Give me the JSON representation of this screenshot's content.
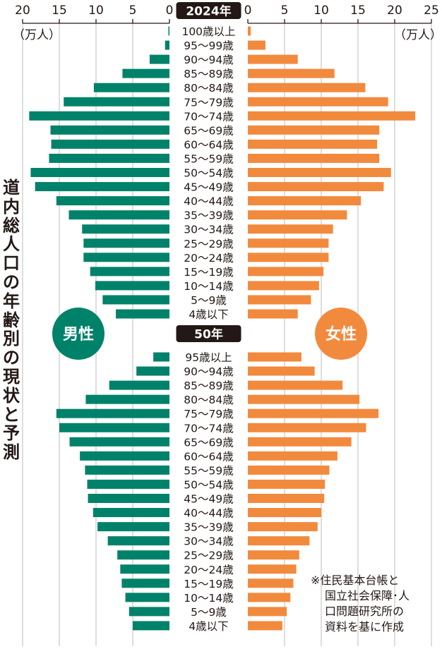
{
  "title": "道内総人口の年齢別の現状と予測",
  "note_lines": [
    "※住民基本台帳と",
    "国立社会保障･人",
    "口問題研究所の",
    "資料を基に作成"
  ],
  "legend": {
    "male": "男性",
    "female": "女性"
  },
  "colors": {
    "male": "#00826a",
    "female": "#f28a3e",
    "label_bg": "#231815",
    "grid": "#c9c9c9",
    "axis": "#231815"
  },
  "chart_data": {
    "type": "bar",
    "subtype": "population-pyramid",
    "title": "道内総人口の年齢別の現状と予測",
    "unit_label": "（万人）",
    "left_axis": {
      "ticks": [
        "20",
        "15",
        "10",
        "5",
        "0"
      ],
      "range": [
        0,
        20
      ],
      "unit": "（万人）"
    },
    "right_axis": {
      "ticks": [
        "0",
        "5",
        "10",
        "15",
        "20",
        "25"
      ],
      "range": [
        0,
        25
      ],
      "unit": "（万人）"
    },
    "grid": true,
    "panels": [
      {
        "label": "2024年",
        "categories": [
          "100歳以上",
          "95～99歳",
          "90～94歳",
          "85～89歳",
          "80～84歳",
          "75～79歳",
          "70～74歳",
          "65～69歳",
          "60～64歳",
          "55～59歳",
          "50～54歳",
          "45～49歳",
          "40～44歳",
          "35～39歳",
          "30～34歳",
          "25～29歳",
          "20～24歳",
          "15～19歳",
          "10～14歳",
          "5～9歳",
          "4歳以下"
        ],
        "series": [
          {
            "name": "男性",
            "values": [
              0.1,
              0.6,
              2.7,
              6.4,
              10.3,
              14.4,
              19.1,
              16.2,
              16.1,
              16.4,
              18.9,
              18.3,
              15.4,
              13.7,
              11.9,
              11.7,
              11.7,
              10.8,
              10.1,
              9.1,
              7.3
            ]
          },
          {
            "name": "女性",
            "values": [
              0.4,
              2.4,
              6.8,
              11.8,
              16.0,
              19.1,
              22.8,
              17.9,
              17.6,
              17.9,
              19.5,
              18.5,
              15.4,
              13.5,
              11.6,
              11.0,
              11.0,
              10.3,
              9.7,
              8.6,
              6.8
            ]
          }
        ]
      },
      {
        "label": "50年",
        "categories": [
          "95歳以上",
          "90～94歳",
          "85～89歳",
          "80～84歳",
          "75～79歳",
          "70～74歳",
          "65～69歳",
          "60～64歳",
          "55～59歳",
          "50～54歳",
          "45～49歳",
          "40～44歳",
          "35～39歳",
          "30～34歳",
          "25～29歳",
          "20～24歳",
          "15～19歳",
          "10～14歳",
          "5～9歳",
          "4歳以下"
        ],
        "series": [
          {
            "name": "男性",
            "values": [
              2.2,
              4.5,
              8.2,
              11.4,
              15.4,
              15.0,
              13.6,
              12.2,
              11.5,
              11.2,
              11.1,
              10.4,
              9.8,
              8.4,
              7.1,
              6.7,
              6.5,
              6.0,
              5.5,
              5.0
            ]
          },
          {
            "name": "女性",
            "values": [
              7.3,
              9.1,
              12.9,
              15.2,
              17.8,
              16.1,
              14.1,
              12.2,
              11.1,
              10.5,
              10.4,
              10.0,
              9.5,
              8.4,
              7.0,
              6.6,
              6.2,
              5.8,
              5.3,
              4.7
            ]
          }
        ]
      }
    ]
  }
}
